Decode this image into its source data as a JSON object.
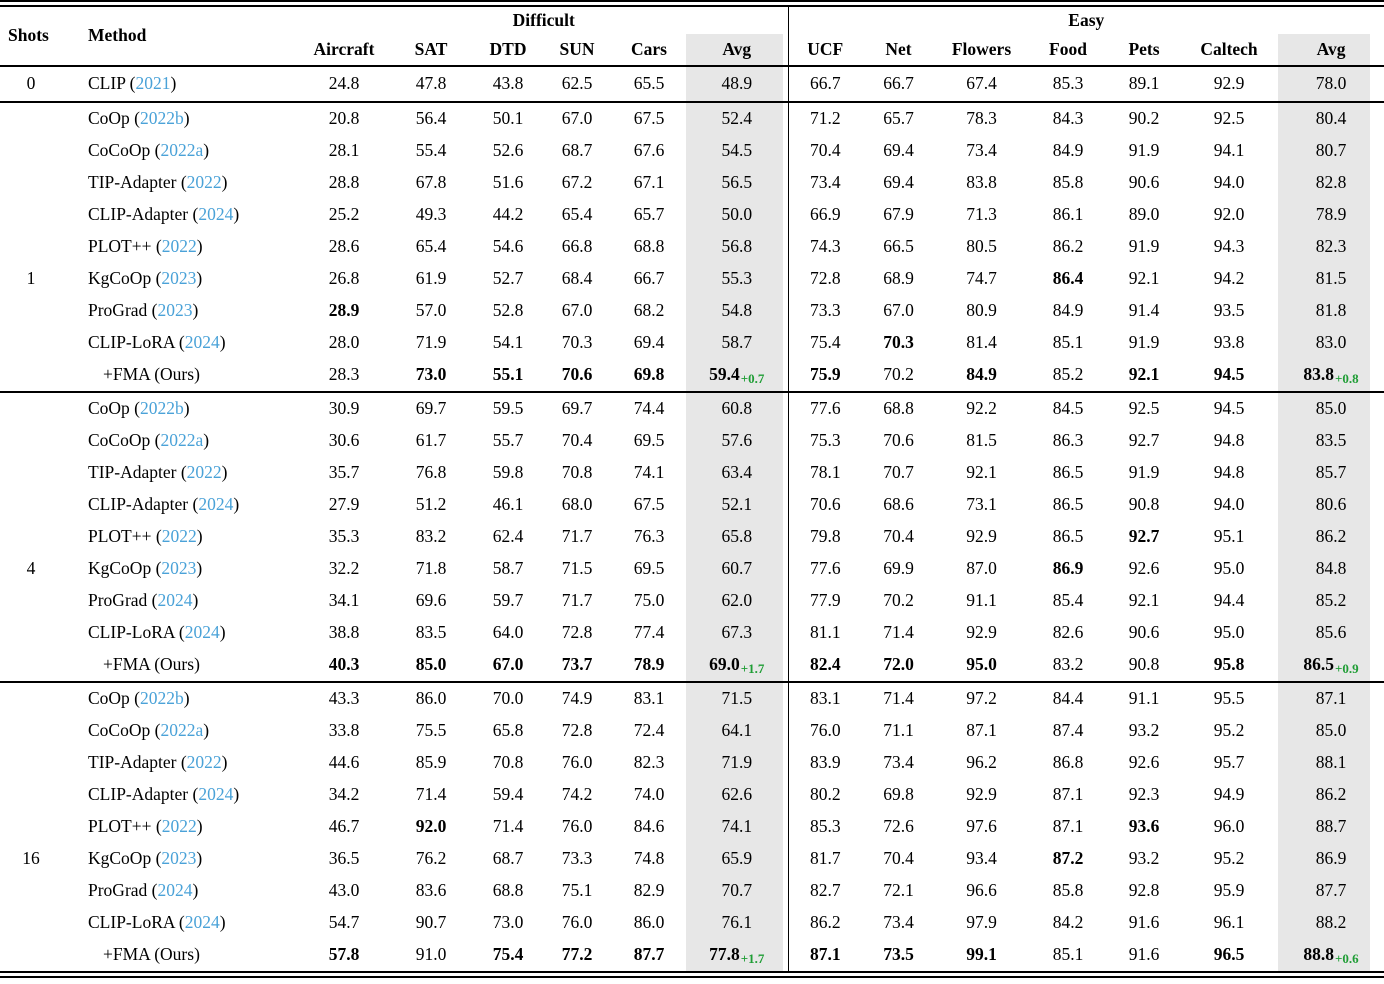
{
  "table": {
    "shots_label": "Shots",
    "method_label": "Method",
    "groups": [
      "Difficult",
      "Easy"
    ],
    "difficult_cols": [
      "Aircraft",
      "SAT",
      "DTD",
      "SUN",
      "Cars",
      "Avg"
    ],
    "easy_cols": [
      "UCF",
      "Net",
      "Flowers",
      "Food",
      "Pets",
      "Caltech",
      "Avg"
    ],
    "citation_color": "#4aa2d8",
    "gain_color": "#1f9d35",
    "avg_column_bg": "#e7e7e7",
    "blocks": [
      {
        "shots": "0",
        "rows": [
          {
            "method": "CLIP",
            "cite": "2021",
            "vals": [
              "24.8",
              "47.8",
              "43.8",
              "62.5",
              "65.5",
              "48.9",
              "66.7",
              "66.7",
              "67.4",
              "85.3",
              "89.1",
              "92.9",
              "78.0"
            ],
            "bold": []
          }
        ]
      },
      {
        "shots": "1",
        "rows": [
          {
            "method": "CoOp",
            "cite": "2022b",
            "vals": [
              "20.8",
              "56.4",
              "50.1",
              "67.0",
              "67.5",
              "52.4",
              "71.2",
              "65.7",
              "78.3",
              "84.3",
              "90.2",
              "92.5",
              "80.4"
            ],
            "bold": []
          },
          {
            "method": "CoCoOp",
            "cite": "2022a",
            "vals": [
              "28.1",
              "55.4",
              "52.6",
              "68.7",
              "67.6",
              "54.5",
              "70.4",
              "69.4",
              "73.4",
              "84.9",
              "91.9",
              "94.1",
              "80.7"
            ],
            "bold": []
          },
          {
            "method": "TIP-Adapter",
            "cite": "2022",
            "vals": [
              "28.8",
              "67.8",
              "51.6",
              "67.2",
              "67.1",
              "56.5",
              "73.4",
              "69.4",
              "83.8",
              "85.8",
              "90.6",
              "94.0",
              "82.8"
            ],
            "bold": []
          },
          {
            "method": "CLIP-Adapter",
            "cite": "2024",
            "vals": [
              "25.2",
              "49.3",
              "44.2",
              "65.4",
              "65.7",
              "50.0",
              "66.9",
              "67.9",
              "71.3",
              "86.1",
              "89.0",
              "92.0",
              "78.9"
            ],
            "bold": []
          },
          {
            "method": "PLOT++",
            "cite": "2022",
            "vals": [
              "28.6",
              "65.4",
              "54.6",
              "66.8",
              "68.8",
              "56.8",
              "74.3",
              "66.5",
              "80.5",
              "86.2",
              "91.9",
              "94.3",
              "82.3"
            ],
            "bold": []
          },
          {
            "method": "KgCoOp",
            "cite": "2023",
            "vals": [
              "26.8",
              "61.9",
              "52.7",
              "68.4",
              "66.7",
              "55.3",
              "72.8",
              "68.9",
              "74.7",
              "86.4",
              "92.1",
              "94.2",
              "81.5"
            ],
            "bold": [
              9
            ]
          },
          {
            "method": "ProGrad",
            "cite": "2023",
            "vals": [
              "28.9",
              "57.0",
              "52.8",
              "67.0",
              "68.2",
              "54.8",
              "73.3",
              "67.0",
              "80.9",
              "84.9",
              "91.4",
              "93.5",
              "81.8"
            ],
            "bold": [
              0
            ]
          },
          {
            "method": "CLIP-LoRA",
            "cite": "2024",
            "vals": [
              "28.0",
              "71.9",
              "54.1",
              "70.3",
              "69.4",
              "58.7",
              "75.4",
              "70.3",
              "81.4",
              "85.1",
              "91.9",
              "93.8",
              "83.0"
            ],
            "bold": [
              7
            ]
          },
          {
            "method": "+FMA",
            "cite": null,
            "suffix": "Ours",
            "ours": true,
            "vals": [
              "28.3",
              "73.0",
              "55.1",
              "70.6",
              "69.8",
              "59.4",
              "75.9",
              "70.2",
              "84.9",
              "85.2",
              "92.1",
              "94.5",
              "83.8"
            ],
            "bold": [
              1,
              2,
              3,
              4,
              5,
              6,
              8,
              10,
              11,
              12
            ],
            "gains": [
              "+0.7",
              "+0.8"
            ]
          }
        ]
      },
      {
        "shots": "4",
        "rows": [
          {
            "method": "CoOp",
            "cite": "2022b",
            "vals": [
              "30.9",
              "69.7",
              "59.5",
              "69.7",
              "74.4",
              "60.8",
              "77.6",
              "68.8",
              "92.2",
              "84.5",
              "92.5",
              "94.5",
              "85.0"
            ],
            "bold": []
          },
          {
            "method": "CoCoOp",
            "cite": "2022a",
            "vals": [
              "30.6",
              "61.7",
              "55.7",
              "70.4",
              "69.5",
              "57.6",
              "75.3",
              "70.6",
              "81.5",
              "86.3",
              "92.7",
              "94.8",
              "83.5"
            ],
            "bold": []
          },
          {
            "method": "TIP-Adapter",
            "cite": "2022",
            "vals": [
              "35.7",
              "76.8",
              "59.8",
              "70.8",
              "74.1",
              "63.4",
              "78.1",
              "70.7",
              "92.1",
              "86.5",
              "91.9",
              "94.8",
              "85.7"
            ],
            "bold": []
          },
          {
            "method": "CLIP-Adapter",
            "cite": "2024",
            "vals": [
              "27.9",
              "51.2",
              "46.1",
              "68.0",
              "67.5",
              "52.1",
              "70.6",
              "68.6",
              "73.1",
              "86.5",
              "90.8",
              "94.0",
              "80.6"
            ],
            "bold": []
          },
          {
            "method": "PLOT++",
            "cite": "2022",
            "vals": [
              "35.3",
              "83.2",
              "62.4",
              "71.7",
              "76.3",
              "65.8",
              "79.8",
              "70.4",
              "92.9",
              "86.5",
              "92.7",
              "95.1",
              "86.2"
            ],
            "bold": [
              10
            ]
          },
          {
            "method": "KgCoOp",
            "cite": "2023",
            "vals": [
              "32.2",
              "71.8",
              "58.7",
              "71.5",
              "69.5",
              "60.7",
              "77.6",
              "69.9",
              "87.0",
              "86.9",
              "92.6",
              "95.0",
              "84.8"
            ],
            "bold": [
              9
            ]
          },
          {
            "method": "ProGrad",
            "cite": "2024",
            "vals": [
              "34.1",
              "69.6",
              "59.7",
              "71.7",
              "75.0",
              "62.0",
              "77.9",
              "70.2",
              "91.1",
              "85.4",
              "92.1",
              "94.4",
              "85.2"
            ],
            "bold": []
          },
          {
            "method": "CLIP-LoRA",
            "cite": "2024",
            "vals": [
              "38.8",
              "83.5",
              "64.0",
              "72.8",
              "77.4",
              "67.3",
              "81.1",
              "71.4",
              "92.9",
              "82.6",
              "90.6",
              "95.0",
              "85.6"
            ],
            "bold": []
          },
          {
            "method": "+FMA",
            "cite": null,
            "suffix": "Ours",
            "ours": true,
            "vals": [
              "40.3",
              "85.0",
              "67.0",
              "73.7",
              "78.9",
              "69.0",
              "82.4",
              "72.0",
              "95.0",
              "83.2",
              "90.8",
              "95.8",
              "86.5"
            ],
            "bold": [
              0,
              1,
              2,
              3,
              4,
              5,
              6,
              7,
              8,
              11,
              12
            ],
            "gains": [
              "+1.7",
              "+0.9"
            ]
          }
        ]
      },
      {
        "shots": "16",
        "rows": [
          {
            "method": "CoOp",
            "cite": "2022b",
            "vals": [
              "43.3",
              "86.0",
              "70.0",
              "74.9",
              "83.1",
              "71.5",
              "83.1",
              "71.4",
              "97.2",
              "84.4",
              "91.1",
              "95.5",
              "87.1"
            ],
            "bold": []
          },
          {
            "method": "CoCoOp",
            "cite": "2022a",
            "vals": [
              "33.8",
              "75.5",
              "65.8",
              "72.8",
              "72.4",
              "64.1",
              "76.0",
              "71.1",
              "87.1",
              "87.4",
              "93.2",
              "95.2",
              "85.0"
            ],
            "bold": []
          },
          {
            "method": "TIP-Adapter",
            "cite": "2022",
            "vals": [
              "44.6",
              "85.9",
              "70.8",
              "76.0",
              "82.3",
              "71.9",
              "83.9",
              "73.4",
              "96.2",
              "86.8",
              "92.6",
              "95.7",
              "88.1"
            ],
            "bold": []
          },
          {
            "method": "CLIP-Adapter",
            "cite": "2024",
            "vals": [
              "34.2",
              "71.4",
              "59.4",
              "74.2",
              "74.0",
              "62.6",
              "80.2",
              "69.8",
              "92.9",
              "87.1",
              "92.3",
              "94.9",
              "86.2"
            ],
            "bold": []
          },
          {
            "method": "PLOT++",
            "cite": "2022",
            "vals": [
              "46.7",
              "92.0",
              "71.4",
              "76.0",
              "84.6",
              "74.1",
              "85.3",
              "72.6",
              "97.6",
              "87.1",
              "93.6",
              "96.0",
              "88.7"
            ],
            "bold": [
              1,
              10
            ]
          },
          {
            "method": "KgCoOp",
            "cite": "2023",
            "vals": [
              "36.5",
              "76.2",
              "68.7",
              "73.3",
              "74.8",
              "65.9",
              "81.7",
              "70.4",
              "93.4",
              "87.2",
              "93.2",
              "95.2",
              "86.9"
            ],
            "bold": [
              9
            ]
          },
          {
            "method": "ProGrad",
            "cite": "2024",
            "vals": [
              "43.0",
              "83.6",
              "68.8",
              "75.1",
              "82.9",
              "70.7",
              "82.7",
              "72.1",
              "96.6",
              "85.8",
              "92.8",
              "95.9",
              "87.7"
            ],
            "bold": []
          },
          {
            "method": "CLIP-LoRA",
            "cite": "2024",
            "vals": [
              "54.7",
              "90.7",
              "73.0",
              "76.0",
              "86.0",
              "76.1",
              "86.2",
              "73.4",
              "97.9",
              "84.2",
              "91.6",
              "96.1",
              "88.2"
            ],
            "bold": []
          },
          {
            "method": "+FMA",
            "cite": null,
            "suffix": "Ours",
            "ours": true,
            "vals": [
              "57.8",
              "91.0",
              "75.4",
              "77.2",
              "87.7",
              "77.8",
              "87.1",
              "73.5",
              "99.1",
              "85.1",
              "91.6",
              "96.5",
              "88.8"
            ],
            "bold": [
              0,
              2,
              3,
              4,
              5,
              6,
              7,
              8,
              11,
              12
            ],
            "gains": [
              "+1.7",
              "+0.6"
            ]
          }
        ]
      }
    ]
  }
}
